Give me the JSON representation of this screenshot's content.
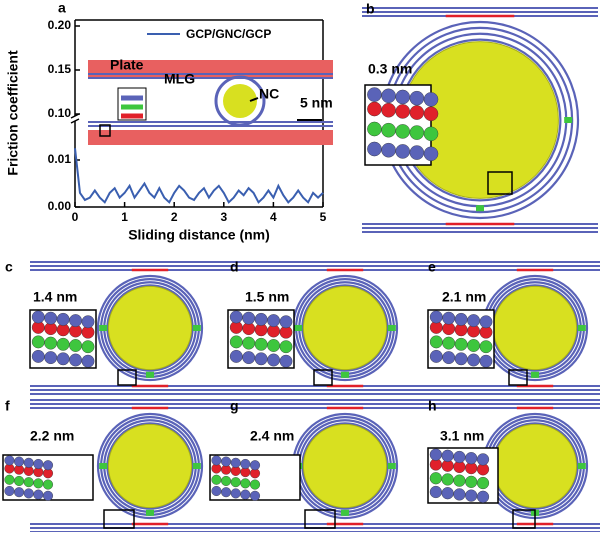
{
  "chart_data": {
    "type": "line",
    "panel_letter": "a",
    "x_label": "Sliding distance (nm)",
    "y_label": "Friction coefficient",
    "annotations": [
      "Plate",
      "MLG",
      "NC",
      "5 nm"
    ],
    "x": [
      0,
      0.1,
      0.2,
      0.3,
      0.4,
      0.5,
      0.6,
      0.7,
      0.8,
      0.9,
      1.0,
      1.1,
      1.2,
      1.3,
      1.4,
      1.5,
      1.6,
      1.7,
      1.8,
      1.9,
      2.0,
      2.1,
      2.2,
      2.3,
      2.4,
      2.5,
      2.6,
      2.7,
      2.8,
      2.9,
      3.0,
      3.1,
      3.2,
      3.3,
      3.4,
      3.5,
      3.6,
      3.7,
      3.8,
      3.9,
      4.0,
      4.1,
      4.2,
      4.3,
      4.4,
      4.5,
      4.6,
      4.7,
      4.8,
      4.9,
      5.0
    ],
    "series": [
      {
        "name": "GCP/GNC/GCP",
        "color": "#3a5fb0",
        "values": [
          0.0125,
          0.003,
          0.0015,
          0.002,
          0.0035,
          0.002,
          0.001,
          0.003,
          0.004,
          0.002,
          0.003,
          0.0045,
          0.002,
          0.0035,
          0.005,
          0.003,
          0.002,
          0.004,
          0.002,
          0.001,
          0.003,
          0.0045,
          0.0035,
          0.002,
          0.0015,
          0.003,
          0.004,
          0.002,
          0.0035,
          0.0045,
          0.003,
          0.001,
          0.002,
          0.0035,
          0.0025,
          0.004,
          0.003,
          0.001,
          0.002,
          0.0035,
          0.002,
          0.0045,
          0.0025,
          0.001,
          0.002,
          0.0035,
          0.002,
          0.001,
          0.003,
          0.002,
          0.003
        ]
      }
    ],
    "xlim": [
      0,
      5
    ],
    "xticks": [
      0,
      1,
      2,
      3,
      4,
      5
    ],
    "ylim": [
      0,
      0.2
    ],
    "axis_break": [
      0.017,
      0.095
    ],
    "yticks": [
      {
        "value": 0,
        "label": "0.00"
      },
      {
        "value": 0.01,
        "label": "0.01"
      },
      {
        "value": 0.1,
        "label": "0.10"
      },
      {
        "value": 0.15,
        "label": "0.15"
      },
      {
        "value": 0.2,
        "label": "0.20"
      }
    ]
  },
  "panels": [
    {
      "letter": "b",
      "distance": "0.3 nm"
    },
    {
      "letter": "c",
      "distance": "1.4 nm"
    },
    {
      "letter": "d",
      "distance": "1.5 nm"
    },
    {
      "letter": "e",
      "distance": "2.1 nm"
    },
    {
      "letter": "f",
      "distance": "2.2 nm"
    },
    {
      "letter": "g",
      "distance": "2.4 nm"
    },
    {
      "letter": "h",
      "distance": "3.1 nm"
    }
  ]
}
